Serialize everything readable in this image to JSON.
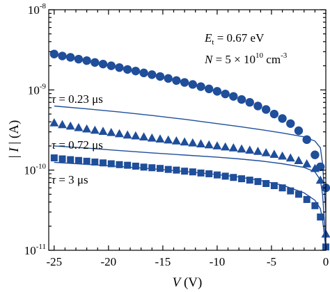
{
  "chart_data": {
    "type": "scatter",
    "xlabel": {
      "italic": "V",
      "rest": " (V)"
    },
    "ylabel": {
      "italic": "I",
      "left": "| ",
      "right": " | (A)"
    },
    "xlim": [
      -25.5,
      0
    ],
    "ylim": [
      1e-11,
      1e-08
    ],
    "yscale": "log",
    "xticks": [
      {
        "value": -25,
        "label": "-25"
      },
      {
        "value": -20,
        "label": "-20"
      },
      {
        "value": -15,
        "label": "-15"
      },
      {
        "value": -10,
        "label": "-10"
      },
      {
        "value": -5,
        "label": "-5"
      },
      {
        "value": 0,
        "label": "0"
      }
    ],
    "yticks": [
      {
        "value": 1e-08,
        "base": "10",
        "exp": "-8"
      },
      {
        "value": 1e-09,
        "base": "10",
        "exp": "-9"
      },
      {
        "value": 1e-10,
        "base": "10",
        "exp": "-10"
      },
      {
        "value": 1e-11,
        "base": "10",
        "exp": "-11"
      }
    ],
    "annotations": {
      "et": {
        "italic": "E",
        "sub": "t",
        "rest": " = 0.67 eV"
      },
      "n": {
        "italic": "N",
        "mid": " = 5 × 10",
        "sup": "10",
        "unit": " cm",
        "unitsup": "-3"
      }
    },
    "series": [
      {
        "marker": "circle",
        "color": "#1f4e9a",
        "fit_label": {
          "italic": "τ",
          "rest": " = 0.23 μs"
        },
        "points": [
          [
            -25,
            2.8e-09
          ],
          [
            -24.25,
            2.65e-09
          ],
          [
            -23.5,
            2.55e-09
          ],
          [
            -22.75,
            2.42e-09
          ],
          [
            -22,
            2.32e-09
          ],
          [
            -21.25,
            2.2e-09
          ],
          [
            -20.5,
            2.1e-09
          ],
          [
            -19.75,
            2e-09
          ],
          [
            -19,
            1.9e-09
          ],
          [
            -18.25,
            1.8e-09
          ],
          [
            -17.5,
            1.72e-09
          ],
          [
            -16.75,
            1.63e-09
          ],
          [
            -16,
            1.55e-09
          ],
          [
            -15.25,
            1.47e-09
          ],
          [
            -14.5,
            1.39e-09
          ],
          [
            -13.75,
            1.31e-09
          ],
          [
            -13,
            1.24e-09
          ],
          [
            -12.25,
            1.17e-09
          ],
          [
            -11.5,
            1.1e-09
          ],
          [
            -10.75,
            1.03e-09
          ],
          [
            -10,
            9.6e-10
          ],
          [
            -9.25,
            8.9e-10
          ],
          [
            -8.5,
            8.3e-10
          ],
          [
            -7.75,
            7.6e-10
          ],
          [
            -7,
            7e-10
          ],
          [
            -6.25,
            6.3e-10
          ],
          [
            -5.5,
            5.7e-10
          ],
          [
            -4.75,
            5e-10
          ],
          [
            -4,
            4.4e-10
          ],
          [
            -3.25,
            3.8e-10
          ],
          [
            -2.5,
            3.1e-10
          ],
          [
            -1.75,
            2.4e-10
          ],
          [
            -1,
            1.55e-10
          ],
          [
            -0.5,
            1.1e-10
          ],
          [
            0,
            6e-11
          ]
        ],
        "fit": [
          [
            -25,
            6.3e-10
          ],
          [
            -22,
            5.8e-10
          ],
          [
            -19,
            5.3e-10
          ],
          [
            -16,
            4.8e-10
          ],
          [
            -13,
            4.3e-10
          ],
          [
            -10,
            3.8e-10
          ],
          [
            -8,
            3.5e-10
          ],
          [
            -6,
            3.2e-10
          ],
          [
            -4,
            2.9e-10
          ],
          [
            -2,
            2.6e-10
          ],
          [
            -1,
            2.3e-10
          ],
          [
            -0.5,
            1.9e-10
          ],
          [
            -0.3,
            1.2e-10
          ],
          [
            -0.15,
            6e-11
          ],
          [
            0,
            3e-11
          ]
        ]
      },
      {
        "marker": "triangle",
        "color": "#1f4e9a",
        "fit_label": {
          "italic": "τ",
          "rest": " = 0.72 μs"
        },
        "points": [
          [
            -25,
            3.9e-10
          ],
          [
            -24.25,
            3.7e-10
          ],
          [
            -23.5,
            3.55e-10
          ],
          [
            -22.75,
            3.4e-10
          ],
          [
            -22,
            3.27e-10
          ],
          [
            -21.25,
            3.15e-10
          ],
          [
            -20.5,
            3.05e-10
          ],
          [
            -19.75,
            2.95e-10
          ],
          [
            -19,
            2.85e-10
          ],
          [
            -18.25,
            2.75e-10
          ],
          [
            -17.5,
            2.68e-10
          ],
          [
            -16.75,
            2.6e-10
          ],
          [
            -16,
            2.52e-10
          ],
          [
            -15.25,
            2.45e-10
          ],
          [
            -14.5,
            2.38e-10
          ],
          [
            -13.75,
            2.32e-10
          ],
          [
            -13,
            2.25e-10
          ],
          [
            -12.25,
            2.19e-10
          ],
          [
            -11.5,
            2.13e-10
          ],
          [
            -10.75,
            2.07e-10
          ],
          [
            -10,
            2.01e-10
          ],
          [
            -9.25,
            1.95e-10
          ],
          [
            -8.5,
            1.9e-10
          ],
          [
            -7.75,
            1.84e-10
          ],
          [
            -7,
            1.78e-10
          ],
          [
            -6.25,
            1.72e-10
          ],
          [
            -5.5,
            1.65e-10
          ],
          [
            -4.75,
            1.58e-10
          ],
          [
            -4,
            1.5e-10
          ],
          [
            -3.25,
            1.42e-10
          ],
          [
            -2.5,
            1.32e-10
          ],
          [
            -1.75,
            1.2e-10
          ],
          [
            -1,
            1.05e-10
          ],
          [
            -0.5,
            7.5e-11
          ],
          [
            0,
            1.6e-11
          ]
        ],
        "fit": [
          [
            -25,
            2e-10
          ],
          [
            -22,
            1.88e-10
          ],
          [
            -19,
            1.75e-10
          ],
          [
            -16,
            1.64e-10
          ],
          [
            -13,
            1.54e-10
          ],
          [
            -10,
            1.45e-10
          ],
          [
            -8,
            1.38e-10
          ],
          [
            -6,
            1.3e-10
          ],
          [
            -4,
            1.2e-10
          ],
          [
            -2,
            1.08e-10
          ],
          [
            -1,
            9.5e-11
          ],
          [
            -0.5,
            7.5e-11
          ],
          [
            -0.3,
            5e-11
          ],
          [
            -0.15,
            2.5e-11
          ],
          [
            0,
            1.2e-11
          ]
        ]
      },
      {
        "marker": "square",
        "color": "#1f4e9a",
        "fit_label": {
          "italic": "τ",
          "rest": " = 3 μs"
        },
        "points": [
          [
            -25,
            1.42e-10
          ],
          [
            -24.25,
            1.38e-10
          ],
          [
            -23.5,
            1.35e-10
          ],
          [
            -22.75,
            1.32e-10
          ],
          [
            -22,
            1.29e-10
          ],
          [
            -21.25,
            1.26e-10
          ],
          [
            -20.5,
            1.23e-10
          ],
          [
            -19.75,
            1.2e-10
          ],
          [
            -19,
            1.17e-10
          ],
          [
            -18.25,
            1.15e-10
          ],
          [
            -17.5,
            1.12e-10
          ],
          [
            -16.75,
            1.09e-10
          ],
          [
            -16,
            1.07e-10
          ],
          [
            -15.25,
            1.05e-10
          ],
          [
            -14.5,
            1.02e-10
          ],
          [
            -13.75,
            1e-10
          ],
          [
            -13,
            9.7e-11
          ],
          [
            -12.25,
            9.5e-11
          ],
          [
            -11.5,
            9.2e-11
          ],
          [
            -10.75,
            9e-11
          ],
          [
            -10,
            8.7e-11
          ],
          [
            -9.25,
            8.4e-11
          ],
          [
            -8.5,
            8.1e-11
          ],
          [
            -7.75,
            7.8e-11
          ],
          [
            -7,
            7.5e-11
          ],
          [
            -6.25,
            7.2e-11
          ],
          [
            -5.5,
            6.8e-11
          ],
          [
            -4.75,
            6.4e-11
          ],
          [
            -4,
            6e-11
          ],
          [
            -3.25,
            5.5e-11
          ],
          [
            -2.5,
            5e-11
          ],
          [
            -1.75,
            4.3e-11
          ],
          [
            -1,
            3.6e-11
          ],
          [
            -0.5,
            2.6e-11
          ],
          [
            0,
            1.1e-11
          ]
        ],
        "fit": [
          [
            -25,
            1.25e-10
          ],
          [
            -22,
            1.18e-10
          ],
          [
            -19,
            1.11e-10
          ],
          [
            -16,
            1.04e-10
          ],
          [
            -13,
            9.6e-11
          ],
          [
            -10,
            8.8e-11
          ],
          [
            -8,
            8.2e-11
          ],
          [
            -6,
            7.4e-11
          ],
          [
            -4,
            6.5e-11
          ],
          [
            -2,
            5.2e-11
          ],
          [
            -1,
            4.2e-11
          ],
          [
            -0.5,
            3.3e-11
          ],
          [
            -0.3,
            2.4e-11
          ],
          [
            -0.15,
            1.6e-11
          ],
          [
            0,
            1.05e-11
          ]
        ]
      }
    ]
  }
}
